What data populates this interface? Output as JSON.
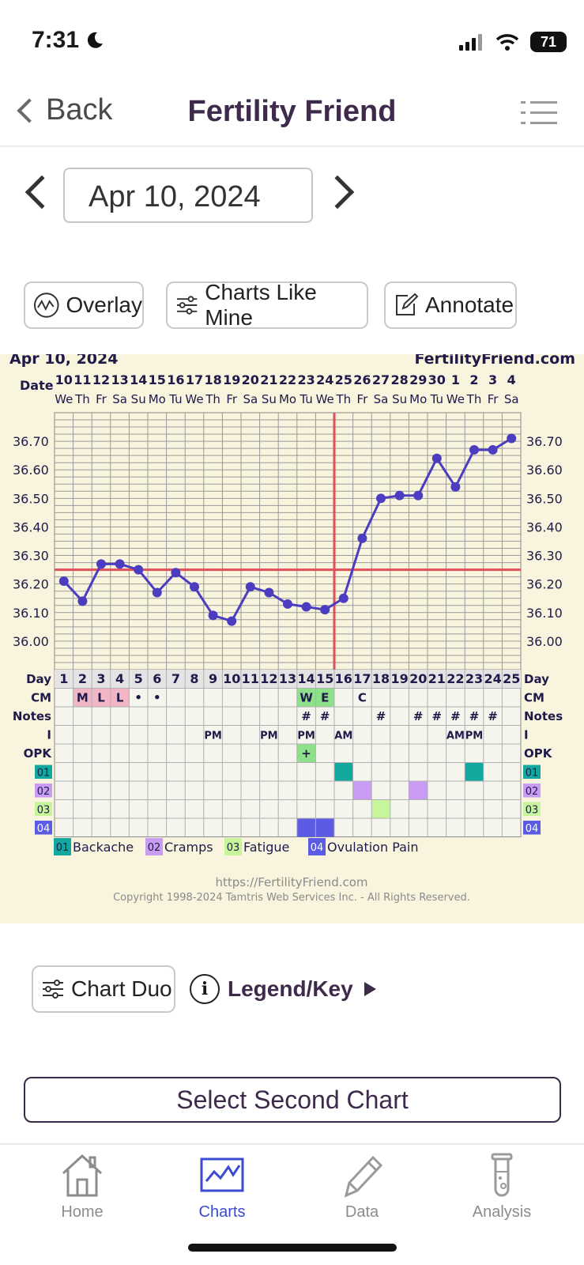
{
  "status": {
    "time": "7:31",
    "battery": "71"
  },
  "nav": {
    "back_label": "Back",
    "title": "Fertility Friend"
  },
  "date_picker": {
    "value": "Apr 10, 2024"
  },
  "actions": {
    "overlay": "Overlay",
    "charts_like_mine": "Charts Like Mine",
    "annotate": "Annotate"
  },
  "chart_data": {
    "type": "line",
    "title": "Apr 10, 2024",
    "brand": "FertilityFriend.com",
    "date_row_label": "Date",
    "dates": [
      "10",
      "11",
      "12",
      "13",
      "14",
      "15",
      "16",
      "17",
      "18",
      "19",
      "20",
      "21",
      "22",
      "23",
      "24",
      "25",
      "26",
      "27",
      "28",
      "29",
      "30",
      "1",
      "2",
      "3",
      "4"
    ],
    "weekdays": [
      "We",
      "Th",
      "Fr",
      "Sa",
      "Su",
      "Mo",
      "Tu",
      "We",
      "Th",
      "Fr",
      "Sa",
      "Su",
      "Mo",
      "Tu",
      "We",
      "Th",
      "Fr",
      "Sa",
      "Su",
      "Mo",
      "Tu",
      "We",
      "Th",
      "Fr",
      "Sa"
    ],
    "days": [
      "1",
      "2",
      "3",
      "4",
      "5",
      "6",
      "7",
      "8",
      "9",
      "10",
      "11",
      "12",
      "13",
      "14",
      "15",
      "16",
      "17",
      "18",
      "19",
      "20",
      "21",
      "22",
      "23",
      "24",
      "25"
    ],
    "y_ticks": [
      "36.70",
      "36.60",
      "36.50",
      "36.40",
      "36.30",
      "36.20",
      "36.10",
      "36.00"
    ],
    "ylim": [
      35.9,
      36.8
    ],
    "series": [
      {
        "values": [
          36.21,
          36.14,
          36.27,
          36.27,
          36.25,
          36.17,
          36.24,
          36.19,
          36.09,
          36.07,
          36.19,
          36.17,
          36.13,
          36.12,
          36.11,
          36.15,
          36.36,
          36.5,
          36.51,
          36.51,
          36.64,
          36.54,
          36.67,
          36.67,
          36.71
        ],
        "color": "#4b3cc0"
      }
    ],
    "coverline": 36.25,
    "ovulation_day": 16,
    "row_labels": {
      "day": "Day",
      "cm": "CM",
      "notes": "Notes",
      "i": "I",
      "opk": "OPK"
    },
    "cm_row": [
      "",
      "M",
      "L",
      "L",
      "•",
      "•",
      "",
      "",
      "",
      "",
      "",
      "",
      "",
      "W",
      "E",
      "",
      "C",
      "",
      "",
      "",
      "",
      "",
      "",
      "",
      ""
    ],
    "notes_row": [
      "",
      "",
      "",
      "",
      "",
      "",
      "",
      "",
      "",
      "",
      "",
      "",
      "",
      "#",
      "#",
      "",
      "",
      "#",
      "",
      "#",
      "#",
      "#",
      "#",
      "#",
      ""
    ],
    "i_row": [
      "",
      "",
      "",
      "",
      "",
      "",
      "",
      "",
      "PM",
      "",
      "",
      "PM",
      "",
      "PM",
      "",
      "AM",
      "",
      "",
      "",
      "",
      "",
      "AM",
      "PM",
      "",
      ""
    ],
    "opk_row": [
      "",
      "",
      "",
      "",
      "",
      "",
      "",
      "",
      "",
      "",
      "",
      "",
      "",
      "+",
      "",
      "",
      "",
      "",
      "",
      "",
      "",
      "",
      "",
      "",
      ""
    ],
    "symptom_rows": [
      {
        "code": "01",
        "name": "Backache",
        "color": "#13a89e",
        "days": [
          16,
          23
        ]
      },
      {
        "code": "02",
        "name": "Cramps",
        "color": "#c89cf2",
        "days": [
          17,
          20
        ]
      },
      {
        "code": "03",
        "name": "Fatigue",
        "color": "#c6f59c",
        "days": [
          18
        ]
      },
      {
        "code": "04",
        "name": "Ovulation Pain",
        "color": "#5b5be6",
        "days": [
          14,
          15
        ]
      }
    ],
    "footer_url": "https://FertilityFriend.com",
    "footer_copyright": "Copyright 1998-2024 Tamtris Web Services Inc. - All Rights Reserved."
  },
  "bottom_actions": {
    "chart_duo": "Chart Duo",
    "legend_key": "Legend/Key",
    "select_second": "Select Second Chart"
  },
  "tabs": [
    {
      "label": "Home",
      "icon": "house-icon"
    },
    {
      "label": "Charts",
      "icon": "chart-icon",
      "active": true
    },
    {
      "label": "Data",
      "icon": "pencil-icon"
    },
    {
      "label": "Analysis",
      "icon": "test-tube-icon"
    }
  ]
}
